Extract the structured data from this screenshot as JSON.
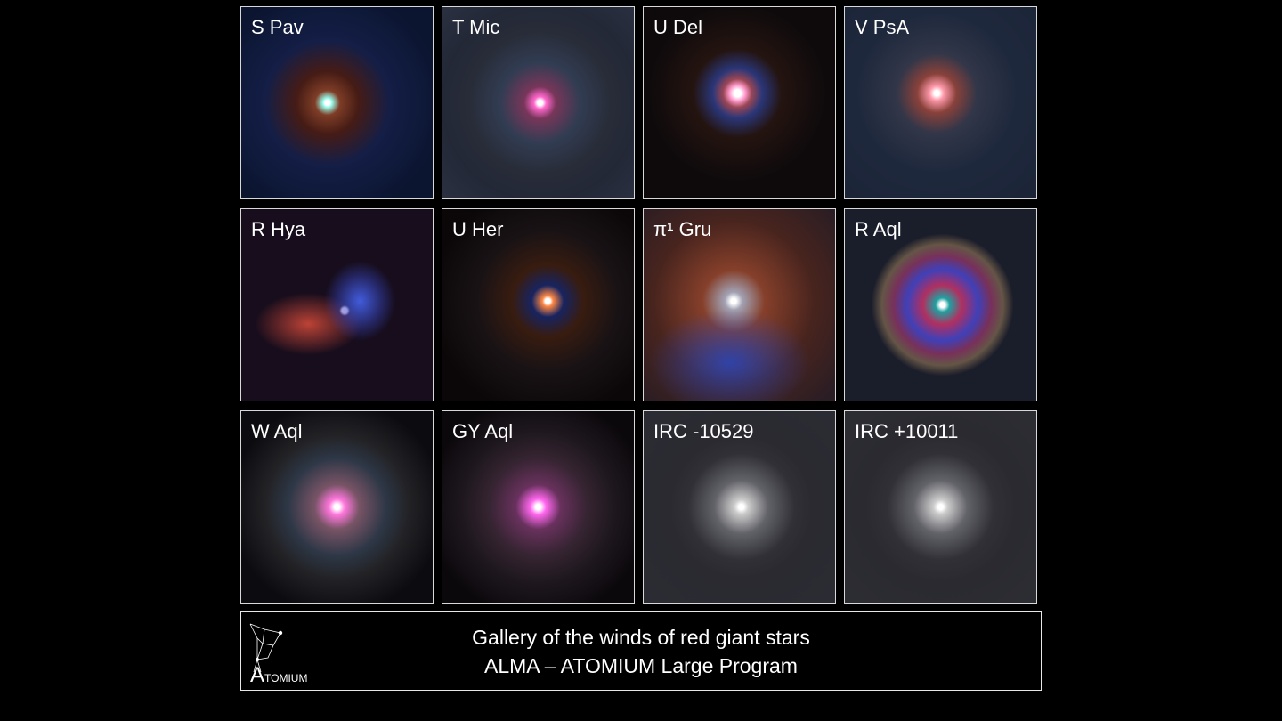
{
  "panels": [
    {
      "label": "S Pav"
    },
    {
      "label": "T Mic"
    },
    {
      "label": "U Del"
    },
    {
      "label": "V PsA"
    },
    {
      "label": "R Hya"
    },
    {
      "label": "U Her"
    },
    {
      "label": "π¹ Gru"
    },
    {
      "label": "R Aql"
    },
    {
      "label": "W Aql"
    },
    {
      "label": "GY Aql"
    },
    {
      "label": "IRC -10529"
    },
    {
      "label": "IRC +10011"
    }
  ],
  "caption": {
    "line1": "Gallery of the winds of red giant stars",
    "line2": "ALMA – ATOMIUM Large Program"
  },
  "logo": {
    "text": "ATOMIUM"
  }
}
